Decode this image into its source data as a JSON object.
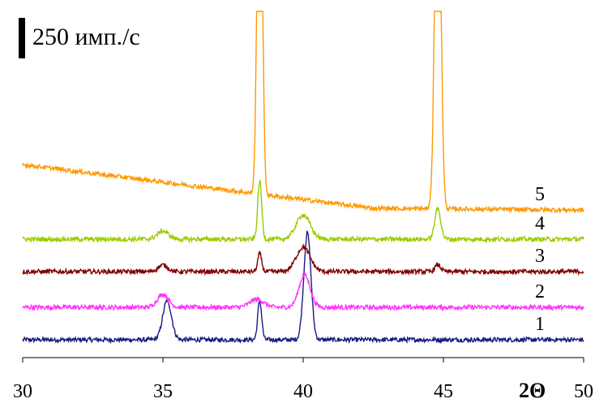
{
  "chart_data": {
    "type": "line",
    "xlabel": "2Θ",
    "xlim": [
      30,
      50
    ],
    "x_ticks": [
      30,
      35,
      40,
      45,
      50
    ],
    "ylabel": "",
    "y_axis_visible": false,
    "scale_bar": {
      "label": "250 имп./с",
      "value_counts_per_s": 250
    },
    "series": [
      {
        "label": "1",
        "color": "#1a1a80",
        "baseline": 20,
        "peaks": [
          {
            "x": 35.15,
            "height": 120,
            "width": 0.22
          },
          {
            "x": 38.45,
            "height": 120,
            "width": 0.1
          },
          {
            "x": 40.15,
            "height": 330,
            "width": 0.18
          }
        ]
      },
      {
        "label": "2",
        "color": "#ff33ff",
        "baseline": 120,
        "peaks": [
          {
            "x": 35.0,
            "height": 40,
            "width": 0.28
          },
          {
            "x": 38.35,
            "height": 25,
            "width": 0.35
          },
          {
            "x": 40.05,
            "height": 100,
            "width": 0.28
          }
        ]
      },
      {
        "label": "3",
        "color": "#800000",
        "baseline": 230,
        "peaks": [
          {
            "x": 35.0,
            "height": 20,
            "width": 0.25
          },
          {
            "x": 38.45,
            "height": 55,
            "width": 0.1
          },
          {
            "x": 40.0,
            "height": 75,
            "width": 0.35
          },
          {
            "x": 44.8,
            "height": 20,
            "width": 0.15
          }
        ]
      },
      {
        "label": "4",
        "color": "#99cc00",
        "baseline": 330,
        "peaks": [
          {
            "x": 35.0,
            "height": 25,
            "width": 0.28
          },
          {
            "x": 38.45,
            "height": 180,
            "width": 0.1
          },
          {
            "x": 40.0,
            "height": 75,
            "width": 0.35
          },
          {
            "x": 44.8,
            "height": 95,
            "width": 0.15
          }
        ]
      },
      {
        "label": "5",
        "color": "#ff9900",
        "baseline": 420,
        "baseline_start_offset": 140,
        "peaks": [
          {
            "x": 38.45,
            "height": 1400,
            "width": 0.12
          },
          {
            "x": 44.8,
            "height": 1400,
            "width": 0.14
          }
        ]
      }
    ]
  }
}
